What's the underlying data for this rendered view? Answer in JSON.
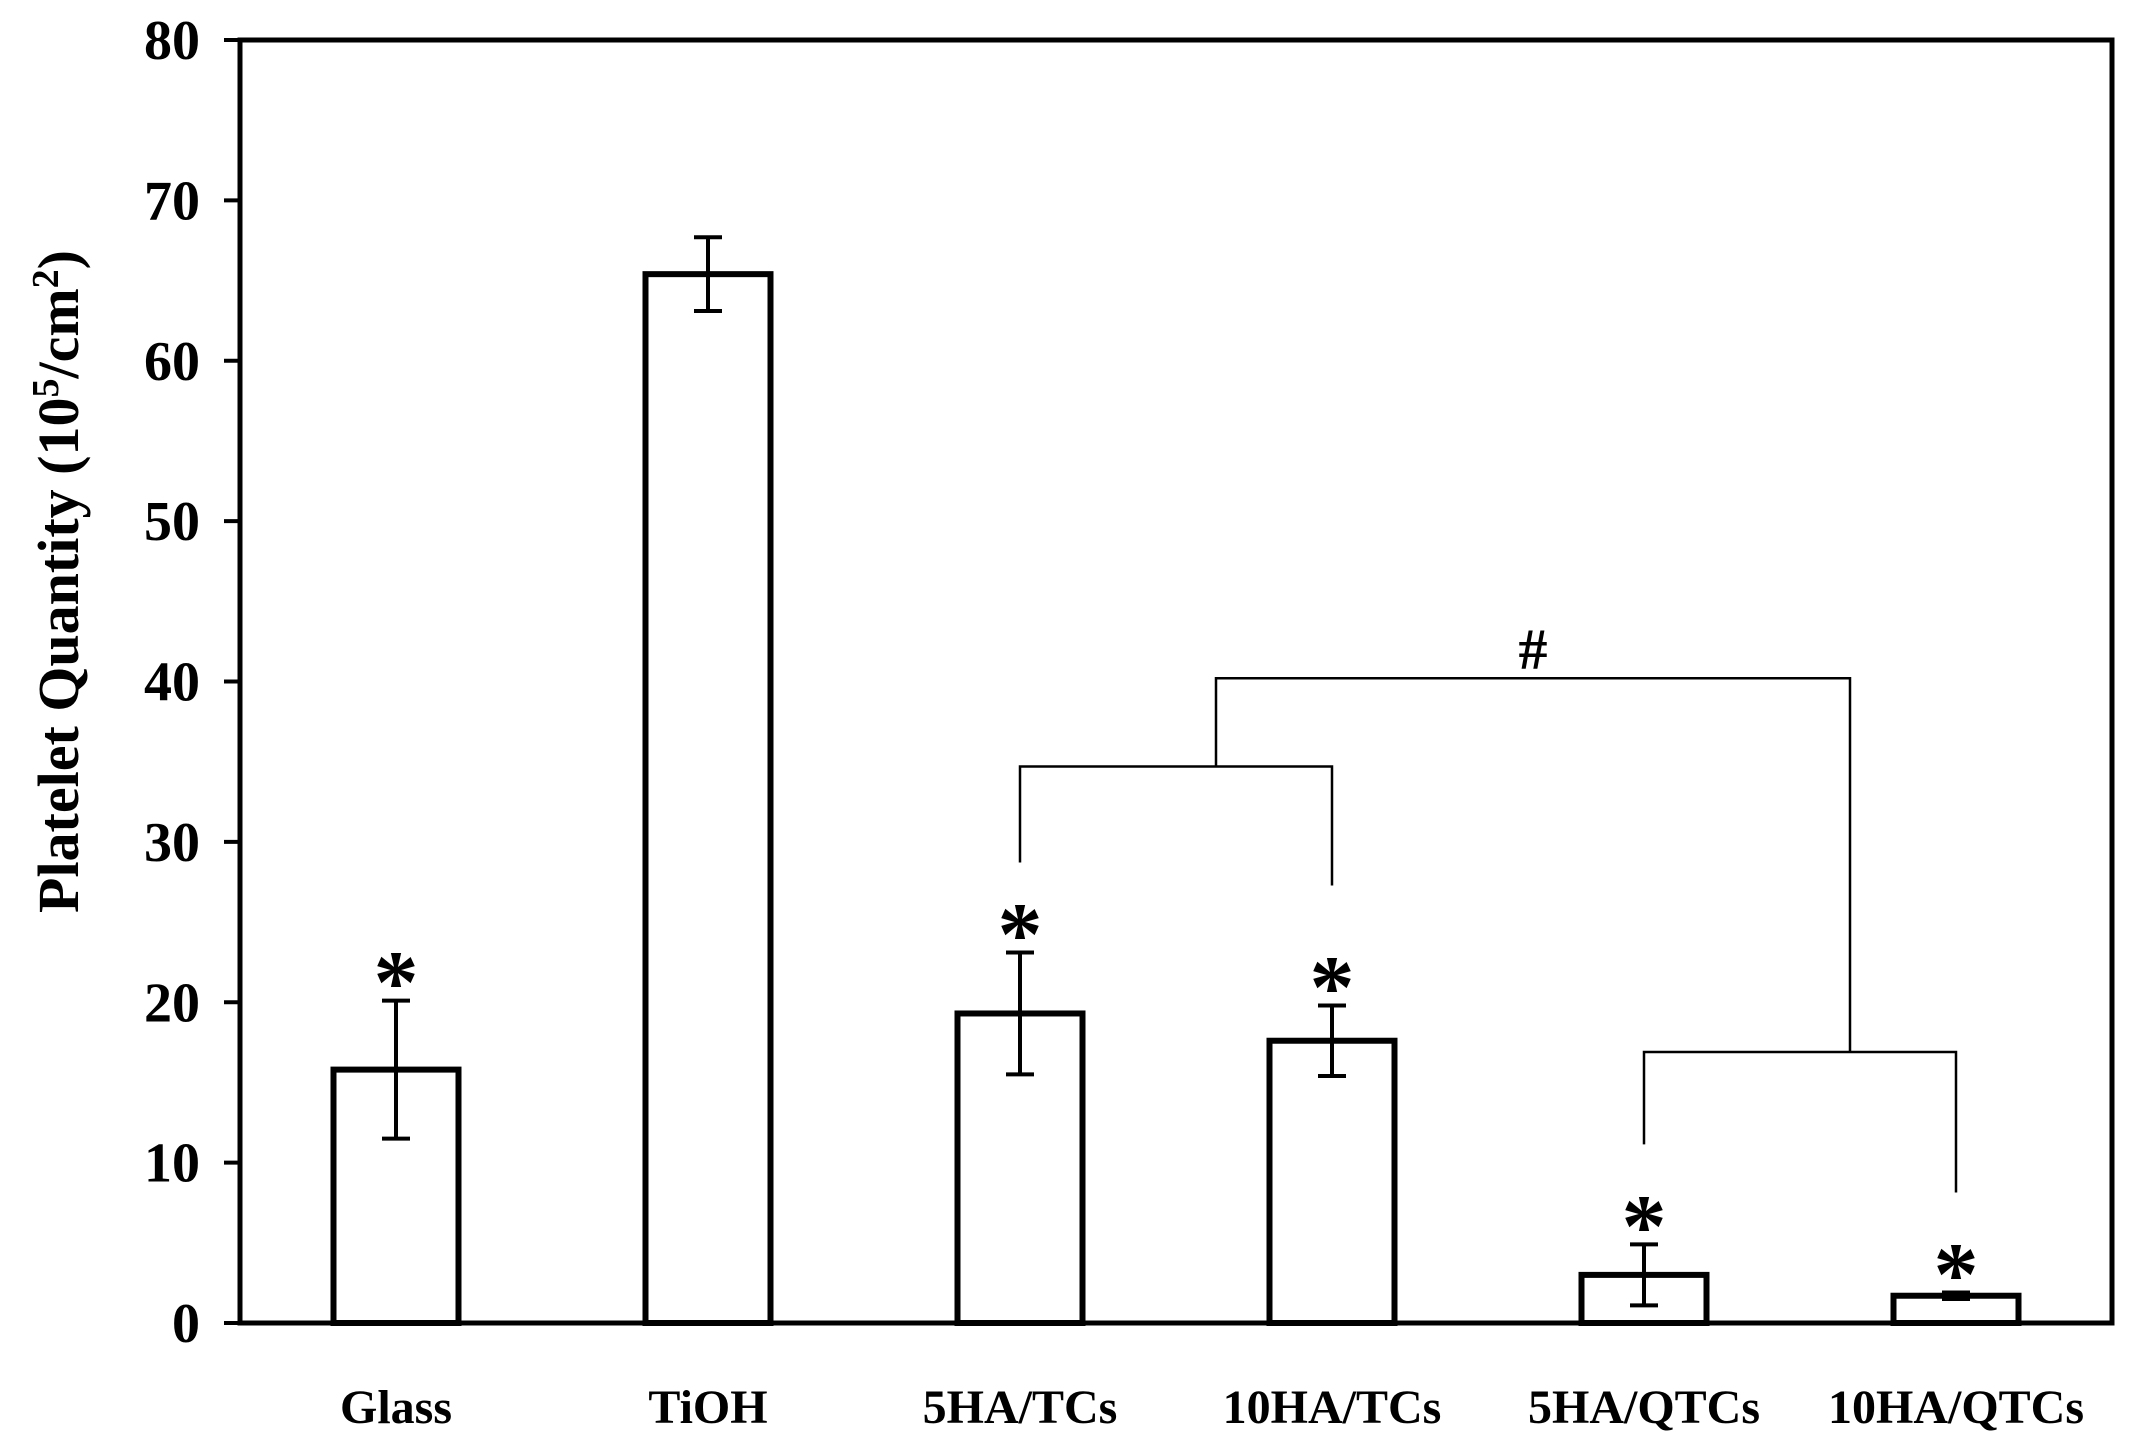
{
  "chart_data": {
    "type": "bar",
    "title": "",
    "xlabel": "",
    "ylabel": "Platelet Quantity (10",
    "ylabel_sup": "5",
    "ylabel_unit": "/cm",
    "ylabel_sup2": "2",
    "ylabel_close": ")",
    "ylim": [
      0,
      80
    ],
    "yticks": [
      0,
      10,
      20,
      30,
      40,
      50,
      60,
      70,
      80
    ],
    "ytick_labels": [
      "0",
      "10",
      "20",
      "30",
      "40",
      "50",
      "60",
      "70",
      "80"
    ],
    "categories": [
      "Glass",
      "TiOH",
      "5HA/TCs",
      "10HA/TCs",
      "5HA/QTCs",
      "10HA/QTCs"
    ],
    "values": [
      15.8,
      65.4,
      19.3,
      17.6,
      3.0,
      1.7
    ],
    "errors": [
      4.3,
      2.3,
      3.8,
      2.2,
      1.9,
      0.2
    ],
    "significance_markers": [
      "*",
      "",
      "*",
      "*",
      "*",
      "*"
    ],
    "group_comparison_label": "#",
    "grid": false,
    "legend": "none"
  }
}
